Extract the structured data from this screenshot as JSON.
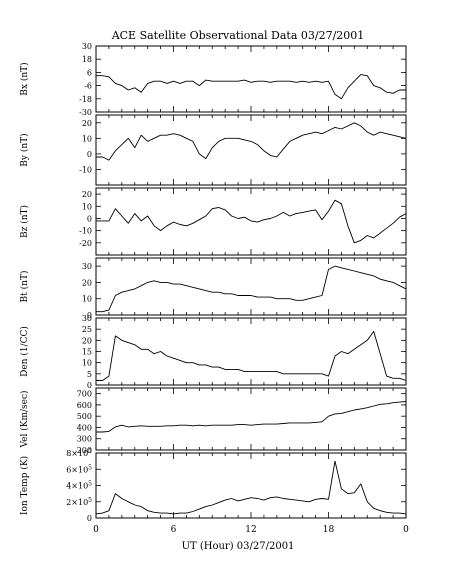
{
  "figure": {
    "title": "ACE Satellite Observational Data   03/27/2001",
    "xlabel": "UT (Hour)   03/27/2001",
    "x_tick_labels": [
      "0",
      "6",
      "12",
      "18",
      "0"
    ]
  },
  "chart_data": [
    {
      "type": "line",
      "ylabel": "Bx (nT)",
      "ylim": [
        -30,
        30
      ],
      "yticks": [
        30,
        18,
        6,
        -6,
        -18,
        -30
      ],
      "x": [
        0,
        0.5,
        1,
        1.5,
        2,
        2.5,
        3,
        3.5,
        4,
        4.5,
        5,
        5.5,
        6,
        6.5,
        7,
        7.5,
        8,
        8.5,
        9,
        9.5,
        10,
        10.5,
        11,
        11.5,
        12,
        12.5,
        13,
        13.5,
        14,
        14.5,
        15,
        15.5,
        16,
        16.5,
        17,
        17.5,
        18,
        18.5,
        19,
        19.5,
        20,
        20.5,
        21,
        21.5,
        22,
        22.5,
        23,
        23.5,
        24
      ],
      "values": [
        3,
        3,
        2,
        -4,
        -6,
        -10,
        -8,
        -12,
        -4,
        -2,
        -2,
        -4,
        -2,
        -4,
        -2,
        -2,
        -6,
        -1,
        -2,
        -2,
        -2,
        -2,
        -2,
        -1,
        -3,
        -2,
        -2,
        -3,
        -2,
        -2,
        -2,
        -3,
        -2,
        -3,
        -2,
        -3,
        -2,
        -14,
        -18,
        -8,
        -2,
        4,
        3,
        -6,
        -8,
        -12,
        -13,
        -10,
        -10
      ]
    },
    {
      "type": "line",
      "ylabel": "By (nT)",
      "ylim": [
        -20,
        25
      ],
      "yticks": [
        20,
        10,
        0,
        -10
      ],
      "x": [
        0,
        0.5,
        1,
        1.5,
        2,
        2.5,
        3,
        3.5,
        4,
        4.5,
        5,
        5.5,
        6,
        6.5,
        7,
        7.5,
        8,
        8.5,
        9,
        9.5,
        10,
        10.5,
        11,
        11.5,
        12,
        12.5,
        13,
        13.5,
        14,
        14.5,
        15,
        15.5,
        16,
        16.5,
        17,
        17.5,
        18,
        18.5,
        19,
        19.5,
        20,
        20.5,
        21,
        21.5,
        22,
        22.5,
        23,
        23.5,
        24
      ],
      "values": [
        -2,
        -2,
        -4,
        2,
        6,
        10,
        4,
        12,
        8,
        10,
        12,
        12,
        13,
        12,
        10,
        8,
        0,
        -3,
        4,
        8,
        10,
        10,
        10,
        9,
        8,
        6,
        2,
        -1,
        -2,
        3,
        8,
        10,
        12,
        13,
        14,
        13,
        15,
        17,
        16,
        18,
        20,
        18,
        14,
        12,
        14,
        13,
        12,
        11,
        10
      ]
    },
    {
      "type": "line",
      "ylabel": "Bz (nT)",
      "ylim": [
        -30,
        25
      ],
      "yticks": [
        20,
        10,
        0,
        -10,
        -20
      ],
      "x": [
        0,
        0.5,
        1,
        1.5,
        2,
        2.5,
        3,
        3.5,
        4,
        4.5,
        5,
        5.5,
        6,
        6.5,
        7,
        7.5,
        8,
        8.5,
        9,
        9.5,
        10,
        10.5,
        11,
        11.5,
        12,
        12.5,
        13,
        13.5,
        14,
        14.5,
        15,
        15.5,
        16,
        16.5,
        17,
        17.5,
        18,
        18.5,
        19,
        19.5,
        20,
        20.5,
        21,
        21.5,
        22,
        22.5,
        23,
        23.5,
        24
      ],
      "values": [
        -2,
        -2,
        -2,
        8,
        2,
        -4,
        4,
        -2,
        2,
        -6,
        -10,
        -6,
        -3,
        -5,
        -6,
        -4,
        -1,
        2,
        8,
        9,
        7,
        2,
        0,
        1,
        -2,
        -3,
        -1,
        0,
        2,
        5,
        2,
        4,
        5,
        6,
        7,
        -1,
        6,
        15,
        12,
        -6,
        -20,
        -18,
        -14,
        -16,
        -12,
        -8,
        -4,
        1,
        4
      ]
    },
    {
      "type": "line",
      "ylabel": "Bt (nT)",
      "ylim": [
        0,
        35
      ],
      "yticks": [
        30,
        20,
        10,
        0
      ],
      "x": [
        0,
        0.5,
        1,
        1.5,
        2,
        2.5,
        3,
        3.5,
        4,
        4.5,
        5,
        5.5,
        6,
        6.5,
        7,
        7.5,
        8,
        8.5,
        9,
        9.5,
        10,
        10.5,
        11,
        11.5,
        12,
        12.5,
        13,
        13.5,
        14,
        14.5,
        15,
        15.5,
        16,
        16.5,
        17,
        17.5,
        18,
        18.5,
        19,
        19.5,
        20,
        20.5,
        21,
        21.5,
        22,
        22.5,
        23,
        23.5,
        24
      ],
      "values": [
        2,
        2,
        3,
        12,
        14,
        15,
        16,
        18,
        20,
        21,
        20,
        20,
        19,
        19,
        18,
        17,
        16,
        15,
        14,
        14,
        13,
        13,
        12,
        12,
        12,
        11,
        11,
        11,
        10,
        10,
        10,
        9,
        9,
        10,
        11,
        12,
        28,
        30,
        29,
        28,
        27,
        26,
        25,
        24,
        22,
        21,
        20,
        18,
        16
      ]
    },
    {
      "type": "line",
      "ylabel": "Den (1/CC)",
      "ylim": [
        0,
        30
      ],
      "yticks": [
        30,
        25,
        20,
        15,
        10,
        5,
        0
      ],
      "x": [
        0,
        0.5,
        1,
        1.5,
        2,
        2.5,
        3,
        3.5,
        4,
        4.5,
        5,
        5.5,
        6,
        6.5,
        7,
        7.5,
        8,
        8.5,
        9,
        9.5,
        10,
        10.5,
        11,
        11.5,
        12,
        12.5,
        13,
        13.5,
        14,
        14.5,
        15,
        15.5,
        16,
        16.5,
        17,
        17.5,
        18,
        18.5,
        19,
        19.5,
        20,
        20.5,
        21,
        21.5,
        22,
        22.5,
        23,
        23.5,
        24
      ],
      "values": [
        2,
        2,
        4,
        22,
        20,
        19,
        18,
        16,
        16,
        14,
        15,
        13,
        12,
        11,
        10,
        10,
        9,
        9,
        8,
        8,
        7,
        7,
        7,
        6,
        6,
        6,
        6,
        6,
        6,
        5,
        5,
        5,
        5,
        5,
        5,
        5,
        4,
        13,
        15,
        14,
        16,
        18,
        20,
        24,
        14,
        4,
        3,
        3,
        2
      ]
    },
    {
      "type": "line",
      "ylabel": "Vel (Km/sec)",
      "ylim": [
        200,
        750
      ],
      "yticks": [
        700,
        600,
        500,
        400,
        300,
        200
      ],
      "x": [
        0,
        0.5,
        1,
        1.5,
        2,
        2.5,
        3,
        3.5,
        4,
        4.5,
        5,
        5.5,
        6,
        6.5,
        7,
        7.5,
        8,
        8.5,
        9,
        9.5,
        10,
        10.5,
        11,
        11.5,
        12,
        12.5,
        13,
        13.5,
        14,
        14.5,
        15,
        15.5,
        16,
        16.5,
        17,
        17.5,
        18,
        18.5,
        19,
        19.5,
        20,
        20.5,
        21,
        21.5,
        22,
        22.5,
        23,
        23.5,
        24
      ],
      "values": [
        360,
        360,
        365,
        405,
        420,
        405,
        410,
        415,
        410,
        410,
        410,
        415,
        415,
        420,
        420,
        415,
        420,
        415,
        420,
        420,
        420,
        420,
        425,
        425,
        420,
        425,
        430,
        430,
        430,
        435,
        440,
        440,
        440,
        440,
        445,
        450,
        500,
        520,
        525,
        540,
        555,
        565,
        575,
        590,
        605,
        610,
        620,
        625,
        630
      ]
    },
    {
      "type": "line",
      "ylabel": "Ion Temp (K)",
      "ylim": [
        0,
        800000
      ],
      "yticks": [
        800000,
        600000,
        400000,
        200000,
        0
      ],
      "ytick_labels": [
        {
          "mant": "8",
          "exp": "5"
        },
        {
          "mant": "6",
          "exp": "5"
        },
        {
          "mant": "4",
          "exp": "5"
        },
        {
          "mant": "2",
          "exp": "5"
        },
        {
          "mant": "0",
          "exp": ""
        }
      ],
      "x": [
        0,
        0.5,
        1,
        1.5,
        2,
        2.5,
        3,
        3.5,
        4,
        4.5,
        5,
        5.5,
        6,
        6.5,
        7,
        7.5,
        8,
        8.5,
        9,
        9.5,
        10,
        10.5,
        11,
        11.5,
        12,
        12.5,
        13,
        13.5,
        14,
        14.5,
        15,
        15.5,
        16,
        16.5,
        17,
        17.5,
        18,
        18.5,
        19,
        19.5,
        20,
        20.5,
        21,
        21.5,
        22,
        22.5,
        23,
        23.5,
        24
      ],
      "values": [
        50000,
        60000,
        90000,
        300000,
        240000,
        200000,
        160000,
        140000,
        90000,
        70000,
        60000,
        60000,
        50000,
        60000,
        60000,
        80000,
        110000,
        140000,
        160000,
        190000,
        220000,
        240000,
        210000,
        230000,
        250000,
        240000,
        220000,
        250000,
        260000,
        240000,
        230000,
        220000,
        210000,
        200000,
        230000,
        240000,
        230000,
        700000,
        360000,
        300000,
        310000,
        420000,
        200000,
        120000,
        90000,
        70000,
        60000,
        60000,
        50000
      ]
    }
  ]
}
